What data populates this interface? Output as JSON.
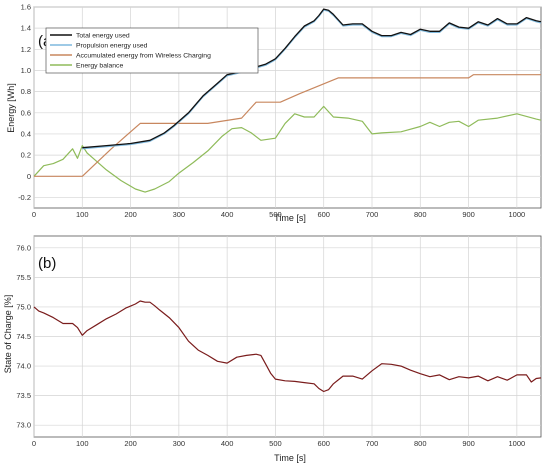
{
  "chart_data": [
    {
      "type": "line",
      "panel_label": "(a)",
      "xlabel": "Time [s]",
      "ylabel": "Energy [Wh]",
      "xlim": [
        0,
        1050
      ],
      "ylim": [
        -0.3,
        1.6
      ],
      "grid": true,
      "legend_position": "top-left",
      "xticks": [
        "0",
        "100",
        "200",
        "300",
        "400",
        "500",
        "600",
        "700",
        "800",
        "900",
        "1000"
      ],
      "yticks": [
        "-0.2",
        "0",
        "0.2",
        "0.4",
        "0.6",
        "0.8",
        "1.0",
        "1.2",
        "1.4",
        "1.6"
      ],
      "series": [
        {
          "name": "Total energy used",
          "color": "#111111",
          "x": [
            100,
            150,
            200,
            240,
            270,
            290,
            320,
            350,
            380,
            400,
            420,
            450,
            480,
            500,
            520,
            540,
            560,
            580,
            590,
            600,
            610,
            620,
            640,
            660,
            680,
            700,
            720,
            740,
            760,
            780,
            800,
            820,
            840,
            860,
            880,
            900,
            920,
            940,
            960,
            980,
            1000,
            1020,
            1040,
            1050
          ],
          "y": [
            0.27,
            0.29,
            0.31,
            0.34,
            0.41,
            0.48,
            0.6,
            0.76,
            0.88,
            0.96,
            0.98,
            1.02,
            1.06,
            1.11,
            1.21,
            1.32,
            1.42,
            1.47,
            1.52,
            1.58,
            1.57,
            1.53,
            1.43,
            1.44,
            1.44,
            1.37,
            1.33,
            1.33,
            1.36,
            1.34,
            1.39,
            1.37,
            1.37,
            1.45,
            1.41,
            1.4,
            1.46,
            1.43,
            1.49,
            1.44,
            1.44,
            1.5,
            1.47,
            1.46
          ]
        },
        {
          "name": "Propulsion energy used",
          "color": "#7fb9dd",
          "x": [
            100,
            150,
            200,
            240,
            270,
            290,
            320,
            350,
            380,
            400,
            420,
            450,
            480,
            500,
            520,
            540,
            560,
            580,
            590,
            600,
            610,
            620,
            640,
            660,
            680,
            700,
            720,
            740,
            760,
            780,
            800,
            820,
            840,
            860,
            880,
            900,
            920,
            940,
            960,
            980,
            1000,
            1020,
            1040,
            1050
          ],
          "y": [
            0.26,
            0.28,
            0.3,
            0.33,
            0.4,
            0.47,
            0.59,
            0.75,
            0.87,
            0.95,
            0.97,
            1.01,
            1.05,
            1.1,
            1.2,
            1.31,
            1.41,
            1.46,
            1.51,
            1.57,
            1.56,
            1.52,
            1.42,
            1.43,
            1.43,
            1.36,
            1.32,
            1.32,
            1.35,
            1.33,
            1.38,
            1.36,
            1.36,
            1.44,
            1.4,
            1.39,
            1.45,
            1.42,
            1.48,
            1.43,
            1.43,
            1.49,
            1.46,
            1.45
          ]
        },
        {
          "name": "Accumulated energy from Wireless Charging",
          "color": "#c8875f",
          "x": [
            0,
            100,
            160,
            200,
            220,
            360,
            430,
            460,
            510,
            550,
            630,
            700,
            900,
            910,
            1050
          ],
          "y": [
            0,
            0,
            0.26,
            0.42,
            0.5,
            0.5,
            0.55,
            0.7,
            0.7,
            0.78,
            0.93,
            0.93,
            0.93,
            0.96,
            0.96
          ],
          "smooth": false
        },
        {
          "name": "Energy balance",
          "color": "#8fbb5a",
          "x": [
            0,
            20,
            40,
            60,
            80,
            90,
            100,
            110,
            120,
            150,
            180,
            210,
            230,
            250,
            280,
            300,
            330,
            360,
            390,
            410,
            430,
            450,
            470,
            500,
            520,
            540,
            560,
            580,
            600,
            620,
            650,
            680,
            700,
            720,
            760,
            800,
            820,
            840,
            860,
            880,
            900,
            920,
            960,
            1000,
            1040,
            1050
          ],
          "y": [
            0,
            0.1,
            0.12,
            0.16,
            0.26,
            0.17,
            0.29,
            0.22,
            0.18,
            0.06,
            -0.04,
            -0.12,
            -0.15,
            -0.12,
            -0.05,
            0.03,
            0.13,
            0.24,
            0.38,
            0.45,
            0.46,
            0.41,
            0.34,
            0.36,
            0.5,
            0.59,
            0.56,
            0.56,
            0.66,
            0.56,
            0.55,
            0.52,
            0.4,
            0.41,
            0.42,
            0.47,
            0.51,
            0.47,
            0.51,
            0.52,
            0.47,
            0.53,
            0.55,
            0.59,
            0.54,
            0.53
          ]
        }
      ]
    },
    {
      "type": "line",
      "panel_label": "(b)",
      "xlabel": "Time [s]",
      "ylabel": "State of Charge [%]",
      "xlim": [
        0,
        1050
      ],
      "ylim": [
        72.8,
        76.2
      ],
      "grid": true,
      "xticks": [
        "0",
        "100",
        "200",
        "300",
        "400",
        "500",
        "600",
        "700",
        "800",
        "900",
        "1000"
      ],
      "yticks": [
        "73.0",
        "73.5",
        "74.0",
        "74.5",
        "75.0",
        "75.5",
        "76.0"
      ],
      "series": [
        {
          "name": "",
          "color": "#7a1c1c",
          "x": [
            0,
            10,
            20,
            40,
            60,
            80,
            90,
            100,
            110,
            130,
            150,
            170,
            190,
            210,
            220,
            230,
            240,
            250,
            260,
            280,
            300,
            320,
            340,
            360,
            380,
            400,
            420,
            440,
            460,
            470,
            480,
            490,
            500,
            520,
            540,
            560,
            580,
            590,
            600,
            610,
            620,
            640,
            660,
            680,
            700,
            720,
            740,
            760,
            780,
            800,
            820,
            840,
            860,
            880,
            900,
            920,
            940,
            960,
            980,
            1000,
            1020,
            1030,
            1040,
            1050
          ],
          "y": [
            75.0,
            74.93,
            74.9,
            74.82,
            74.72,
            74.72,
            74.65,
            74.52,
            74.6,
            74.7,
            74.8,
            74.88,
            74.98,
            75.05,
            75.1,
            75.08,
            75.08,
            75.02,
            74.95,
            74.82,
            74.65,
            74.42,
            74.27,
            74.18,
            74.08,
            74.05,
            74.15,
            74.18,
            74.2,
            74.18,
            74.03,
            73.88,
            73.78,
            73.75,
            73.74,
            73.72,
            73.7,
            73.62,
            73.57,
            73.6,
            73.7,
            73.83,
            73.83,
            73.78,
            73.92,
            74.04,
            74.03,
            74.0,
            73.93,
            73.87,
            73.82,
            73.85,
            73.77,
            73.82,
            73.8,
            73.83,
            73.75,
            73.82,
            73.76,
            73.85,
            73.85,
            73.73,
            73.79,
            73.8
          ]
        }
      ]
    }
  ]
}
